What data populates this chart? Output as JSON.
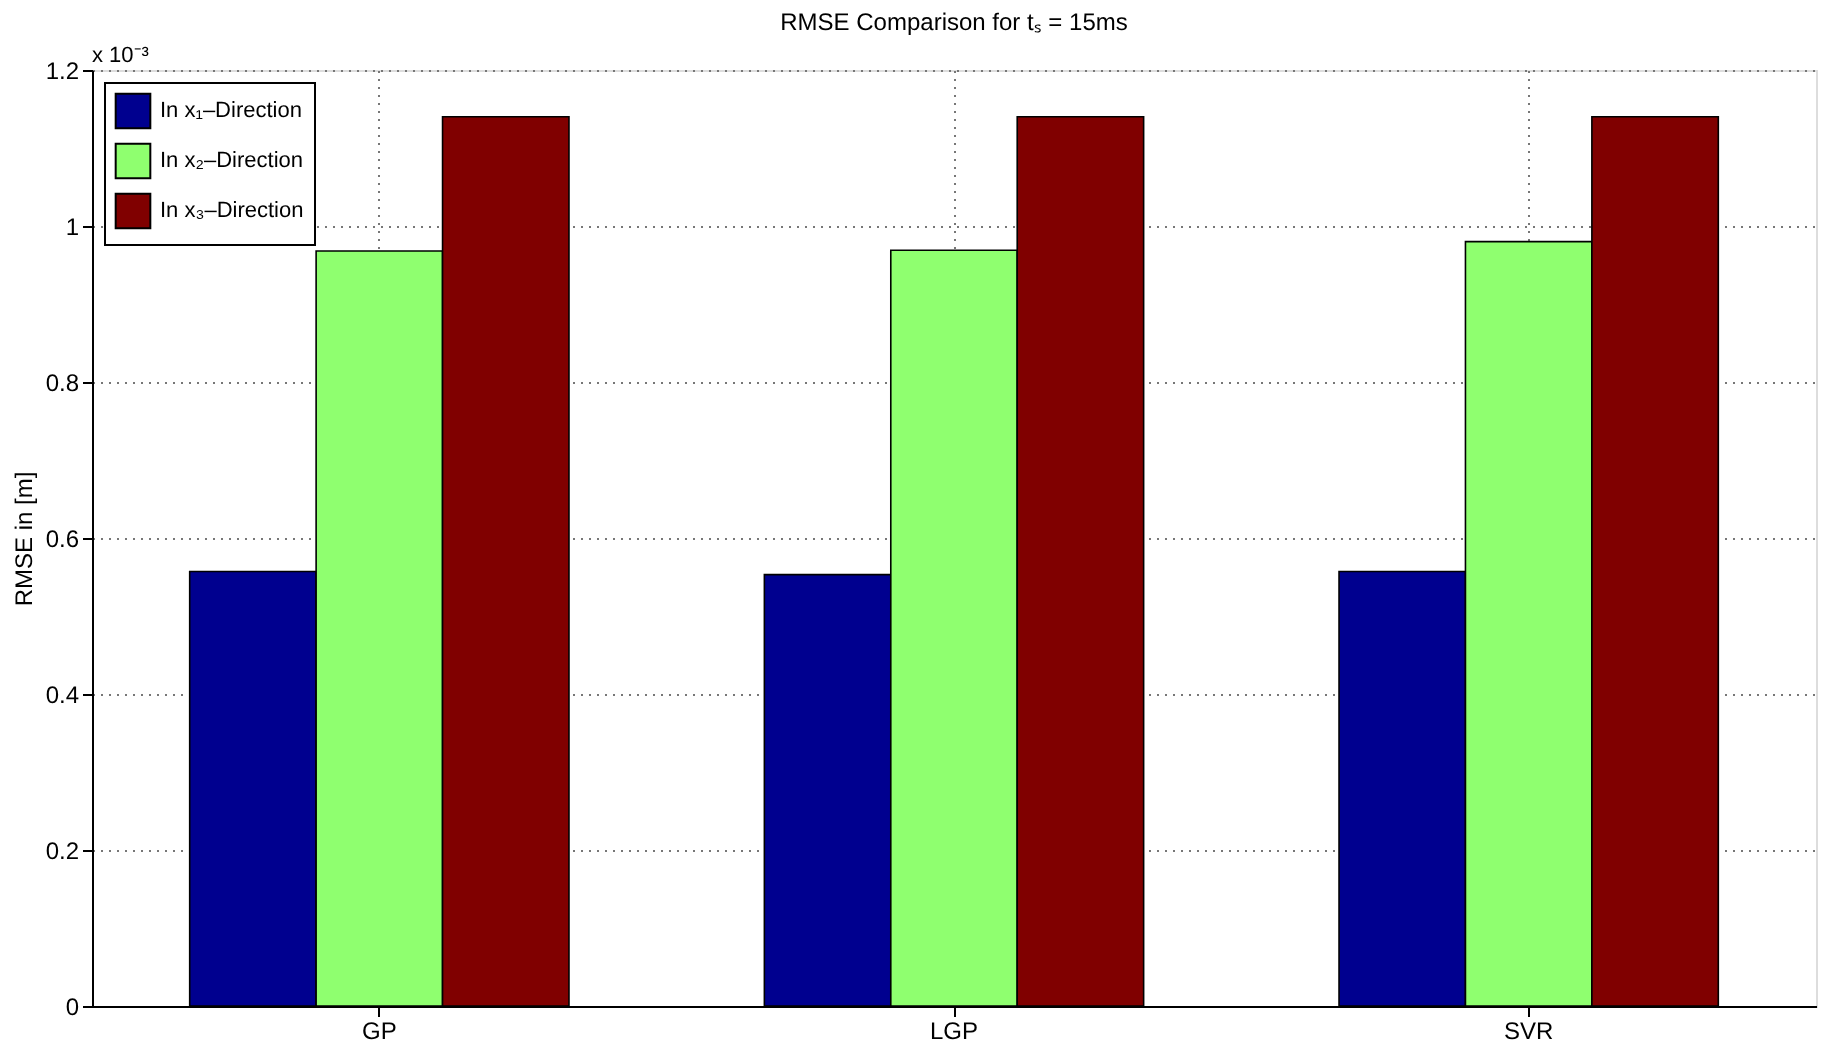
{
  "chart_data": {
    "type": "bar",
    "title": "RMSE Comparison for tₛ = 15ms",
    "ylabel": "RMSE in [m]",
    "annotations": [
      "x 10⁻³"
    ],
    "categories": [
      "GP",
      "LGP",
      "SVR"
    ],
    "series": [
      {
        "name": "In x₁–Direction",
        "color": "#00008f",
        "values": [
          0.557,
          0.553,
          0.557
        ]
      },
      {
        "name": "In x₂–Direction",
        "color": "#8fff6f",
        "values": [
          0.968,
          0.969,
          0.98
        ]
      },
      {
        "name": "In x₃–Direction",
        "color": "#800000",
        "values": [
          1.14,
          1.14,
          1.14
        ]
      }
    ],
    "ylim": [
      0,
      1.2
    ],
    "yticks": [
      0,
      0.2,
      0.4,
      0.6,
      0.8,
      1,
      1.2
    ],
    "grid": true,
    "legend": "top left"
  }
}
